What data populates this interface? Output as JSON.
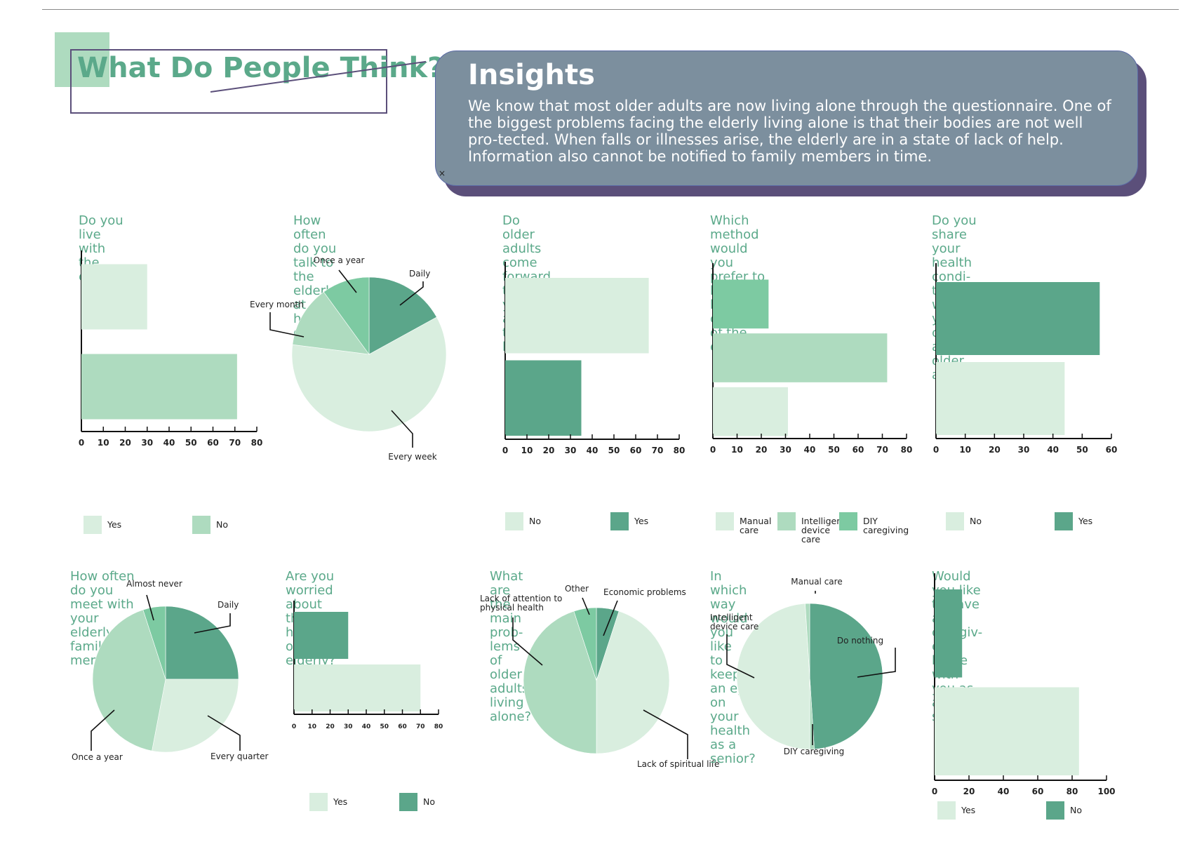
{
  "header": {
    "title": "What Do People Think?",
    "insights_title": "Insights",
    "insights_text": "We know that most older adults are now living alone through the questionnaire. One of the biggest problems facing the elderly living alone is that their bodies are not well pro-tected. When falls or illnesses arise, the elderly are in a state of lack of help. Information also cannot be notified to family members in time."
  },
  "colors": {
    "dark": "#5ba68a",
    "mid": "#aedbbf",
    "bright": "#7dcaa2",
    "light": "#d9eedf",
    "accent": "#5b4f7a",
    "insights_bg": "#7c8f9e"
  },
  "chart_data": [
    {
      "type": "bar",
      "title": "Do you live with the elderly?",
      "categories": [
        "Yes",
        "No"
      ],
      "values": [
        30,
        71
      ],
      "colors": [
        "#d9eedf",
        "#aedbbf"
      ],
      "xlim": [
        0,
        80
      ],
      "ticks": [
        0,
        10,
        20,
        30,
        40,
        50,
        60,
        70,
        80
      ]
    },
    {
      "type": "pie",
      "title": "How often do you talk to\nthe elderly at home on the\nphone?",
      "categories": [
        "Daily",
        "Every week",
        "Every month",
        "Once a year"
      ],
      "values": [
        17,
        60,
        13,
        10
      ],
      "colors": [
        "#5ba68a",
        "#d9eedf",
        "#aedbbf",
        "#7dcaa2"
      ]
    },
    {
      "type": "bar",
      "title": "Do older adults come\nforward to tell you about\ntheir health?",
      "categories": [
        "No",
        "Yes"
      ],
      "values": [
        66,
        35
      ],
      "colors": [
        "#d9eedf",
        "#5ba68a"
      ],
      "xlim": [
        0,
        80
      ],
      "ticks": [
        0,
        10,
        20,
        30,
        40,
        50,
        60,
        70,
        80
      ]
    },
    {
      "type": "bar",
      "title": "Which method would you\nprefer to know the health\ncondition of the elderly?",
      "categories": [
        "DIY\ncaregiving",
        "Intelligent\ndevice care",
        "Manual\ncare"
      ],
      "values": [
        23,
        72,
        31
      ],
      "colors": [
        "#7dcaa2",
        "#aedbbf",
        "#d9eedf"
      ],
      "xlim": [
        0,
        80
      ],
      "ticks": [
        0,
        10,
        20,
        30,
        40,
        50,
        60,
        70,
        80
      ],
      "legend_order": [
        2,
        1,
        0
      ]
    },
    {
      "type": "bar",
      "title": "Do you share your health condi-\ntion with your children as an older\nadult?",
      "categories": [
        "Yes",
        "No"
      ],
      "values": [
        56,
        44
      ],
      "colors": [
        "#5ba68a",
        "#d9eedf"
      ],
      "xlim": [
        0,
        60
      ],
      "ticks": [
        0,
        10,
        20,
        30,
        40,
        50,
        60
      ],
      "legend_order": [
        1,
        0
      ]
    },
    {
      "type": "pie",
      "title": "How often do you meet with\nyour elderly family members?",
      "categories": [
        "Daily",
        "Every quarter",
        "Once a year",
        "Almost never"
      ],
      "values": [
        25,
        28,
        42,
        5
      ],
      "colors": [
        "#5ba68a",
        "#d9eedf",
        "#aedbbf",
        "#7dcaa2"
      ]
    },
    {
      "type": "bar",
      "title": "Are you worried about the\nhealth of the elderly?",
      "categories": [
        "No",
        "Yes"
      ],
      "values": [
        30,
        70
      ],
      "colors": [
        "#5ba68a",
        "#d9eedf"
      ],
      "xlim": [
        0,
        80
      ],
      "ticks": [
        0,
        10,
        20,
        30,
        40,
        50,
        60,
        70,
        80
      ],
      "legend_order": [
        1,
        0
      ]
    },
    {
      "type": "pie",
      "title": "What are the main prob-\nlems of older adults living\nalone?",
      "categories": [
        "Economic problems",
        "Lack of spiritual life",
        "Lack of attention to\nphysical health",
        "Other"
      ],
      "values": [
        5,
        45,
        45,
        5
      ],
      "colors": [
        "#5ba68a",
        "#d9eedf",
        "#aedbbf",
        "#7dcaa2"
      ]
    },
    {
      "type": "pie",
      "title": "In which way would you like\nto keep an eye on your\nhealth as a senior?",
      "categories": [
        "Do nothing",
        "DIY caregiving",
        "Intelligent\ndevice care",
        "Manual care"
      ],
      "values": [
        49,
        1,
        49,
        1
      ],
      "colors": [
        "#5ba68a",
        "#aedbbf",
        "#d9eedf",
        "#aedbbf"
      ]
    },
    {
      "type": "bar",
      "title": "Would you like to have a caregiv-\ner at home with you as a senior?",
      "categories": [
        "No",
        "Yes"
      ],
      "values": [
        16,
        84
      ],
      "colors": [
        "#5ba68a",
        "#d9eedf"
      ],
      "xlim": [
        0,
        100
      ],
      "ticks": [
        0,
        20,
        40,
        60,
        80,
        100
      ],
      "legend_order": [
        1,
        0
      ]
    }
  ]
}
